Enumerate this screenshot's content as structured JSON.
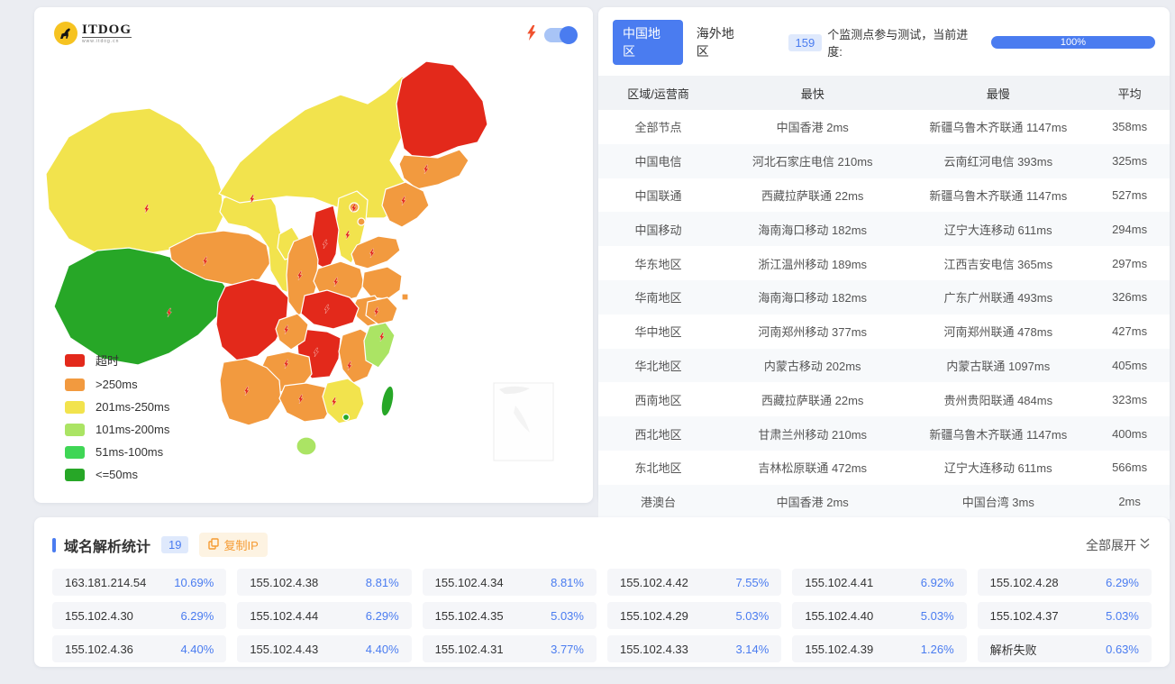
{
  "colors": {
    "accent_blue": "#4a7cf0",
    "button_orange": "#f59b33",
    "bolt_red": "#f0512e"
  },
  "map_card": {
    "logo": {
      "title": "ITDOG",
      "subtitle": "www.itdog.cn"
    },
    "legend": [
      {
        "label": "超时",
        "color": "#e3291b"
      },
      {
        "label": ">250ms",
        "color": "#f29a3f"
      },
      {
        "label": "201ms-250ms",
        "color": "#f2e34d"
      },
      {
        "label": "101ms-200ms",
        "color": "#abe464"
      },
      {
        "label": "51ms-100ms",
        "color": "#3fd655"
      },
      {
        "label": "<=50ms",
        "color": "#27a727"
      }
    ]
  },
  "result_card": {
    "tabs": {
      "china": "中国地区",
      "overseas": "海外地区"
    },
    "monitor_count": "159",
    "monitor_text": "个监测点参与测试，当前进度:",
    "progress": "100%",
    "table": {
      "headers": [
        "区域/运营商",
        "最快",
        "最慢",
        "平均"
      ],
      "rows": [
        [
          "全部节点",
          "中国香港 2ms",
          "新疆乌鲁木齐联通 1147ms",
          "358ms"
        ],
        [
          "中国电信",
          "河北石家庄电信 210ms",
          "云南红河电信 393ms",
          "325ms"
        ],
        [
          "中国联通",
          "西藏拉萨联通 22ms",
          "新疆乌鲁木齐联通 1147ms",
          "527ms"
        ],
        [
          "中国移动",
          "海南海口移动 182ms",
          "辽宁大连移动 611ms",
          "294ms"
        ],
        [
          "华东地区",
          "浙江温州移动 189ms",
          "江西吉安电信 365ms",
          "297ms"
        ],
        [
          "华南地区",
          "海南海口移动 182ms",
          "广东广州联通 493ms",
          "326ms"
        ],
        [
          "华中地区",
          "河南郑州移动 377ms",
          "河南郑州联通 478ms",
          "427ms"
        ],
        [
          "华北地区",
          "内蒙古移动 202ms",
          "内蒙古联通 1097ms",
          "405ms"
        ],
        [
          "西南地区",
          "西藏拉萨联通 22ms",
          "贵州贵阳联通 484ms",
          "323ms"
        ],
        [
          "西北地区",
          "甘肃兰州移动 210ms",
          "新疆乌鲁木齐联通 1147ms",
          "400ms"
        ],
        [
          "东北地区",
          "吉林松原联通 472ms",
          "辽宁大连移动 611ms",
          "566ms"
        ],
        [
          "港澳台",
          "中国香港 2ms",
          "中国台湾 3ms",
          "2ms"
        ]
      ]
    }
  },
  "dns_card": {
    "title": "域名解析统计",
    "count": "19",
    "copy_button": "复制IP",
    "expand_all": "全部展开",
    "entries": [
      {
        "ip": "163.181.214.54",
        "pct": "10.69%"
      },
      {
        "ip": "155.102.4.38",
        "pct": "8.81%"
      },
      {
        "ip": "155.102.4.34",
        "pct": "8.81%"
      },
      {
        "ip": "155.102.4.42",
        "pct": "7.55%"
      },
      {
        "ip": "155.102.4.41",
        "pct": "6.92%"
      },
      {
        "ip": "155.102.4.28",
        "pct": "6.29%"
      },
      {
        "ip": "155.102.4.30",
        "pct": "6.29%"
      },
      {
        "ip": "155.102.4.44",
        "pct": "6.29%"
      },
      {
        "ip": "155.102.4.35",
        "pct": "5.03%"
      },
      {
        "ip": "155.102.4.29",
        "pct": "5.03%"
      },
      {
        "ip": "155.102.4.40",
        "pct": "5.03%"
      },
      {
        "ip": "155.102.4.37",
        "pct": "5.03%"
      },
      {
        "ip": "155.102.4.36",
        "pct": "4.40%"
      },
      {
        "ip": "155.102.4.43",
        "pct": "4.40%"
      },
      {
        "ip": "155.102.4.31",
        "pct": "3.77%"
      },
      {
        "ip": "155.102.4.33",
        "pct": "3.14%"
      },
      {
        "ip": "155.102.4.39",
        "pct": "1.26%"
      },
      {
        "ip": "解析失败",
        "pct": "0.63%"
      }
    ]
  }
}
